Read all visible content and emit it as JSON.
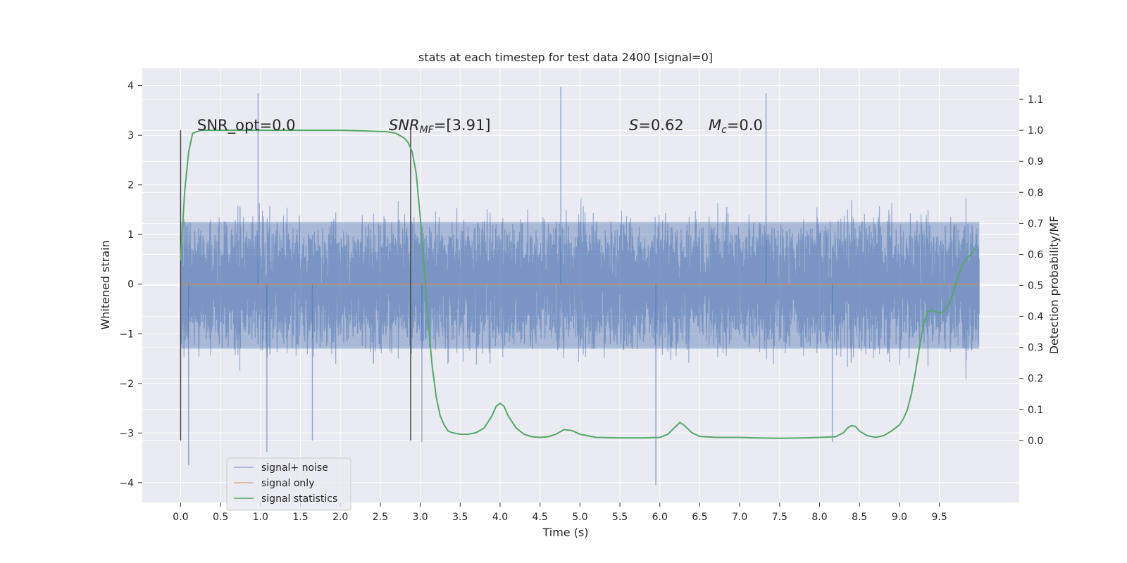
{
  "chart_data": {
    "type": "line",
    "title": "stats at each timestep for test data 2400 [signal=0]",
    "xlabel": "Time (s)",
    "ylabel": "Whitened strain",
    "ylabel_right": "Detection probability/MF",
    "xlim": [
      -0.48,
      10.5
    ],
    "ylim": [
      -4.4,
      4.35
    ],
    "ylim_right": [
      -0.2,
      1.2
    ],
    "xticks": [
      "0.0",
      "0.5",
      "1.0",
      "1.5",
      "2.0",
      "2.5",
      "3.0",
      "3.5",
      "4.0",
      "4.5",
      "5.0",
      "5.5",
      "6.0",
      "6.5",
      "7.0",
      "7.5",
      "8.0",
      "8.5",
      "9.0",
      "9.5"
    ],
    "yticks": [
      "4",
      "3",
      "2",
      "1",
      "0",
      "−1",
      "−2",
      "−3",
      "−4"
    ],
    "yticks_right": [
      "1.1",
      "1.0",
      "0.9",
      "0.8",
      "0.7",
      "0.6",
      "0.5",
      "0.4",
      "0.3",
      "0.2",
      "0.1",
      "0.0"
    ],
    "grid": true,
    "legend_position": "lower-left",
    "annotations": {
      "snr_opt": "SNR_opt=0.0",
      "snr_mf_sym": "SNR",
      "snr_mf_sub": "MF",
      "snr_mf_val": "=[3.91]",
      "s_sym": "S",
      "s_val": "=0.62",
      "mc_sym": "M",
      "mc_sub": "c",
      "mc_val": "=0.0"
    },
    "vertical_markers": [
      {
        "x": 0.0,
        "ymin": -3.15,
        "ymax": 3.1
      },
      {
        "x": 2.88,
        "ymin": -3.15,
        "ymax": 3.1
      }
    ],
    "series": [
      {
        "name": "signal+ noise",
        "color": "#4c72b0",
        "description_type": "noise",
        "x_range": [
          0.0,
          10.0
        ],
        "envelope": [
          1.2,
          2.6
        ],
        "outliers": [
          {
            "x": 0.97,
            "y": 3.85
          },
          {
            "x": 1.08,
            "y": -3.38
          },
          {
            "x": 0.1,
            "y": -3.65
          },
          {
            "x": 1.65,
            "y": -3.15
          },
          {
            "x": 4.76,
            "y": 3.97
          },
          {
            "x": 5.95,
            "y": -4.05
          },
          {
            "x": 7.33,
            "y": 3.85
          },
          {
            "x": 3.02,
            "y": -3.18
          },
          {
            "x": 8.16,
            "y": -3.18
          }
        ]
      },
      {
        "name": "signal only",
        "color": "#dd8452",
        "x": [
          0.0,
          10.0
        ],
        "y": [
          0.0,
          0.0
        ]
      },
      {
        "name": "signal statistics",
        "color": "#55a868",
        "axis": "right",
        "x": [
          0.0,
          0.05,
          0.1,
          0.15,
          0.25,
          0.5,
          1.0,
          1.5,
          2.0,
          2.3,
          2.6,
          2.7,
          2.8,
          2.85,
          2.9,
          2.95,
          3.0,
          3.05,
          3.1,
          3.15,
          3.2,
          3.25,
          3.3,
          3.35,
          3.4,
          3.5,
          3.6,
          3.7,
          3.8,
          3.9,
          3.95,
          4.0,
          4.05,
          4.1,
          4.2,
          4.3,
          4.4,
          4.5,
          4.6,
          4.7,
          4.8,
          4.9,
          5.0,
          5.2,
          5.5,
          5.8,
          6.0,
          6.1,
          6.2,
          6.25,
          6.3,
          6.4,
          6.5,
          6.7,
          7.0,
          7.2,
          7.5,
          7.8,
          8.0,
          8.2,
          8.3,
          8.35,
          8.4,
          8.45,
          8.5,
          8.6,
          8.7,
          8.8,
          8.9,
          9.0,
          9.05,
          9.1,
          9.15,
          9.2,
          9.25,
          9.3,
          9.35,
          9.4,
          9.45,
          9.5,
          9.55,
          9.6,
          9.65,
          9.7,
          9.75,
          9.8,
          9.85,
          9.9,
          9.95
        ],
        "y": [
          0.58,
          0.8,
          0.93,
          0.99,
          1.0,
          1.0,
          1.0,
          1.0,
          1.0,
          0.998,
          0.995,
          0.99,
          0.975,
          0.96,
          0.93,
          0.86,
          0.72,
          0.55,
          0.38,
          0.24,
          0.14,
          0.08,
          0.05,
          0.03,
          0.025,
          0.02,
          0.02,
          0.025,
          0.04,
          0.08,
          0.11,
          0.12,
          0.11,
          0.08,
          0.04,
          0.02,
          0.012,
          0.01,
          0.012,
          0.02,
          0.035,
          0.032,
          0.02,
          0.01,
          0.008,
          0.008,
          0.01,
          0.02,
          0.045,
          0.058,
          0.05,
          0.025,
          0.013,
          0.01,
          0.01,
          0.008,
          0.007,
          0.008,
          0.01,
          0.012,
          0.025,
          0.04,
          0.048,
          0.045,
          0.03,
          0.015,
          0.01,
          0.015,
          0.03,
          0.05,
          0.07,
          0.1,
          0.15,
          0.22,
          0.3,
          0.37,
          0.415,
          0.42,
          0.415,
          0.41,
          0.415,
          0.43,
          0.46,
          0.5,
          0.54,
          0.57,
          0.59,
          0.6,
          0.62
        ]
      }
    ]
  }
}
